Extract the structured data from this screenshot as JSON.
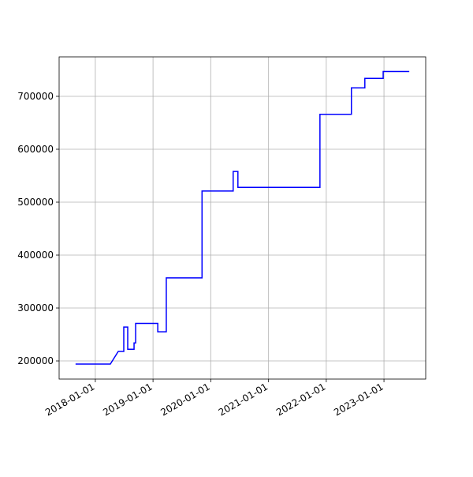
{
  "chart_data": {
    "type": "line",
    "x": [
      "2017-08-29",
      "2018-04-06",
      "2018-05-26",
      "2018-06-30",
      "2018-06-30",
      "2018-07-25",
      "2018-07-25",
      "2018-09-03",
      "2018-09-03",
      "2018-09-13",
      "2018-09-13",
      "2019-01-31",
      "2019-01-31",
      "2019-03-26",
      "2019-03-26",
      "2019-11-07",
      "2019-11-07",
      "2020-05-22",
      "2020-05-22",
      "2020-06-21",
      "2020-06-21",
      "2021-11-22",
      "2021-11-22",
      "2022-06-09",
      "2022-06-09",
      "2022-09-02",
      "2022-09-02",
      "2022-12-27",
      "2022-12-27",
      "2023-06-10"
    ],
    "series": [
      {
        "color": "#0000ff",
        "values": [
          194000,
          194000,
          218000,
          218000,
          264000,
          264000,
          222000,
          222000,
          234000,
          234000,
          271000,
          271000,
          255000,
          255000,
          357000,
          357000,
          521000,
          521000,
          558000,
          558000,
          528000,
          528000,
          666000,
          666000,
          716000,
          716000,
          734000,
          734000,
          747000,
          747000
        ]
      }
    ],
    "xlim": [
      "2017-05-17",
      "2023-09-22"
    ],
    "xticks": [
      "2018-01-01",
      "2019-01-01",
      "2020-01-01",
      "2021-01-01",
      "2022-01-01",
      "2023-01-01"
    ],
    "ylim": [
      165700,
      774600
    ],
    "yticks": [
      200000,
      300000,
      400000,
      500000,
      600000,
      700000
    ],
    "grid": true
  }
}
